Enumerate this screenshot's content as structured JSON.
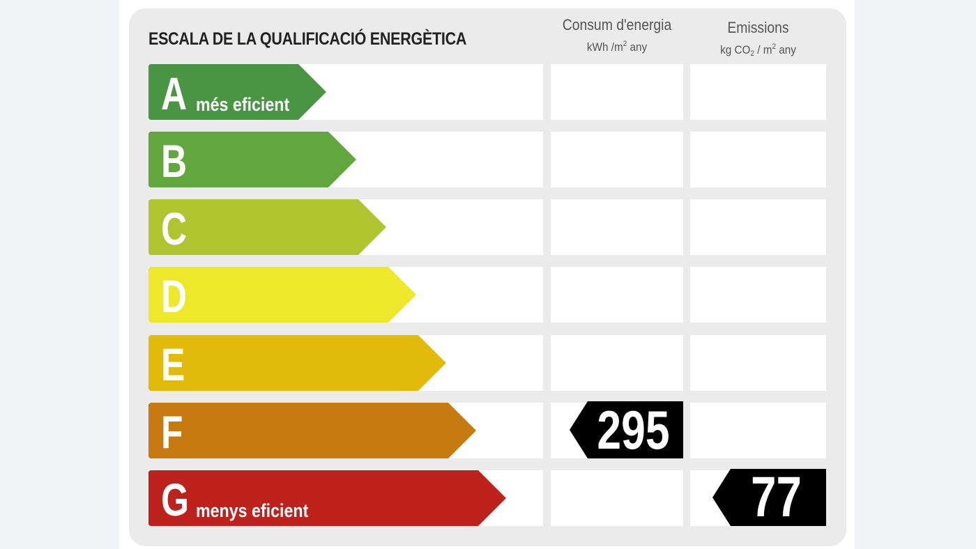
{
  "title": "ESCALA DE LA QUALIFICACIÓ ENERGÈTICA",
  "columns": {
    "consumption": {
      "label": "Consum d'energia",
      "unit_a": "kWh /m",
      "unit_sup": "2",
      "unit_b": " any"
    },
    "emissions": {
      "label": "Emissions",
      "unit_a": "kg CO",
      "unit_sub": "2",
      "unit_mid": "  / m",
      "unit_sup": "2",
      "unit_b": "  any"
    }
  },
  "ratings": [
    {
      "letter": "A",
      "sublabel": "més eficient",
      "color": "#4a9544"
    },
    {
      "letter": "B",
      "sublabel": "",
      "color": "#62a63e"
    },
    {
      "letter": "C",
      "sublabel": "",
      "color": "#afc530"
    },
    {
      "letter": "D",
      "sublabel": "",
      "color": "#ede829"
    },
    {
      "letter": "E",
      "sublabel": "",
      "color": "#e2bb0a"
    },
    {
      "letter": "F",
      "sublabel": "",
      "color": "#c77a10"
    },
    {
      "letter": "G",
      "sublabel": "menys eficient",
      "color": "#bd221c"
    }
  ],
  "consumption_value": {
    "rating": "F",
    "value": "295"
  },
  "emissions_value": {
    "rating": "G",
    "value": "77"
  },
  "marker_color": "#000000"
}
